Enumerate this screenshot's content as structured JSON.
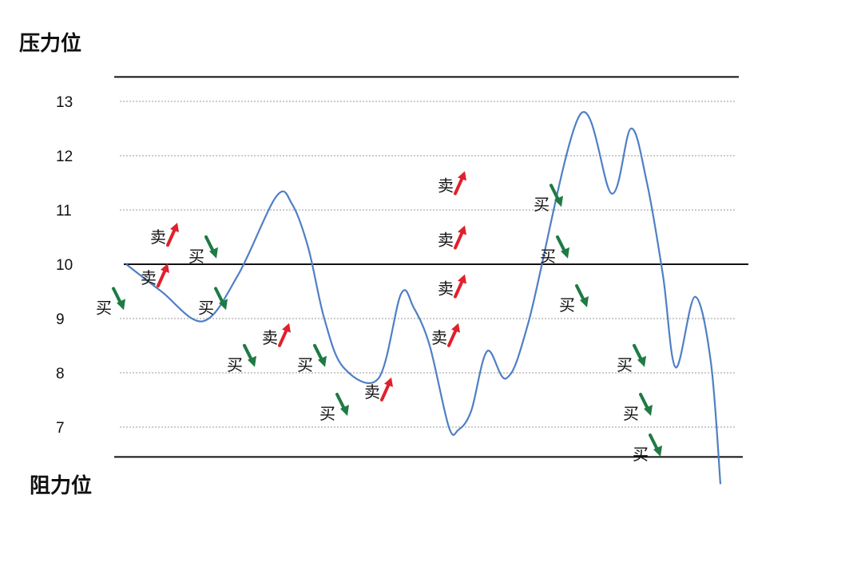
{
  "chart_data": {
    "type": "line",
    "title": "",
    "xlabel": "",
    "ylabel": "",
    "ylim": [
      6.25,
      13.45
    ],
    "grid": true,
    "level_labels": {
      "resistance_top": "压力位",
      "support_bottom": "阻力位"
    },
    "y_ticks": [
      "7",
      "8",
      "9",
      "10",
      "11",
      "12",
      "13"
    ],
    "reference_lines": [
      {
        "label": "压力位",
        "value": 13.45,
        "style": "solid"
      },
      {
        "value": 10,
        "style": "solid"
      },
      {
        "label": "阻力位",
        "value": 6.45,
        "style": "solid"
      }
    ],
    "gridlines": [
      7,
      8,
      9,
      11,
      12,
      13
    ],
    "curve": {
      "color": "#4f7fc4",
      "x": [
        0,
        11,
        24,
        35,
        47,
        52,
        57,
        62,
        68,
        79,
        86,
        90,
        95,
        101,
        104,
        108,
        113,
        119,
        126,
        142,
        152,
        158,
        163,
        168,
        172,
        178,
        183,
        186
      ],
      "y": [
        10.0,
        9.5,
        8.95,
        9.8,
        11.25,
        11.1,
        10.3,
        9.0,
        8.1,
        7.9,
        9.45,
        9.2,
        8.5,
        7.0,
        6.95,
        7.3,
        8.4,
        7.9,
        8.95,
        12.75,
        11.3,
        12.5,
        11.5,
        9.8,
        8.1,
        9.4,
        8.2,
        5.95
      ]
    },
    "annotations": [
      {
        "text": "买",
        "direction": "down",
        "x": 0,
        "y": 9.2
      },
      {
        "text": "卖",
        "direction": "up",
        "x": 14,
        "y": 9.75
      },
      {
        "text": "卖",
        "direction": "up",
        "x": 17,
        "y": 10.5
      },
      {
        "text": "买",
        "direction": "down",
        "x": 29,
        "y": 10.15
      },
      {
        "text": "买",
        "direction": "down",
        "x": 32,
        "y": 9.2
      },
      {
        "text": "买",
        "direction": "down",
        "x": 41,
        "y": 8.15
      },
      {
        "text": "卖",
        "direction": "up",
        "x": 52,
        "y": 8.65
      },
      {
        "text": "买",
        "direction": "down",
        "x": 63,
        "y": 8.15
      },
      {
        "text": "买",
        "direction": "down",
        "x": 70,
        "y": 7.25
      },
      {
        "text": "卖",
        "direction": "up",
        "x": 84,
        "y": 7.65
      },
      {
        "text": "卖",
        "direction": "up",
        "x": 105,
        "y": 8.65
      },
      {
        "text": "卖",
        "direction": "up",
        "x": 107,
        "y": 9.55
      },
      {
        "text": "卖",
        "direction": "up",
        "x": 107,
        "y": 10.45
      },
      {
        "text": "卖",
        "direction": "up",
        "x": 107,
        "y": 11.45
      },
      {
        "text": "买",
        "direction": "down",
        "x": 137,
        "y": 11.1
      },
      {
        "text": "买",
        "direction": "down",
        "x": 139,
        "y": 10.15
      },
      {
        "text": "买",
        "direction": "down",
        "x": 145,
        "y": 9.25
      },
      {
        "text": "买",
        "direction": "down",
        "x": 163,
        "y": 8.15
      },
      {
        "text": "买",
        "direction": "down",
        "x": 165,
        "y": 7.25
      },
      {
        "text": "买",
        "direction": "down",
        "x": 168,
        "y": 6.5
      }
    ],
    "colors": {
      "curve": "#4f7fc4",
      "sell_arrow": "#e0202c",
      "buy_arrow": "#1f7a44",
      "grid": "#9a9a9a",
      "line": "#111111"
    }
  }
}
